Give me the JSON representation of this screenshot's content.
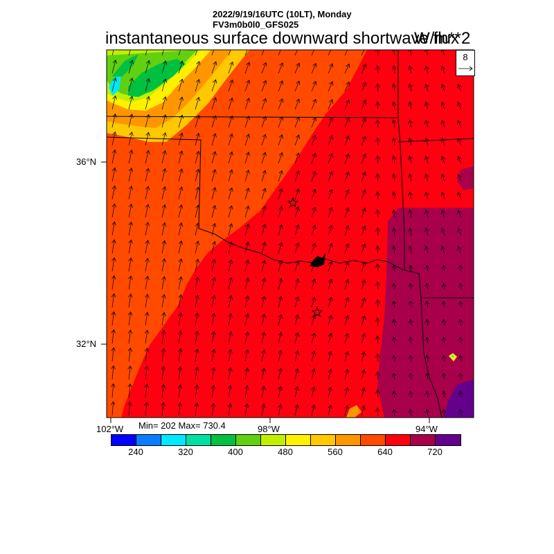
{
  "header": {
    "date_line": "2022/9/19/16UTC (10LT), Monday",
    "model_line": "FV3m0b0l0_GFS025",
    "title": "instantaneous surface downward shortwave flux",
    "units": "W/m**2"
  },
  "axes": {
    "lat_labels": [
      "36°N",
      "32°N"
    ],
    "lon_labels": [
      "102°W",
      "98°W",
      "94°W"
    ]
  },
  "stats": {
    "text": "Min= 202 Max= 730.4"
  },
  "vector_reference": {
    "value": "8"
  },
  "colorbar": {
    "labels": [
      "240",
      "320",
      "400",
      "480",
      "560",
      "640",
      "720"
    ],
    "colors": [
      "#0000ff",
      "#0a7cff",
      "#00e8ff",
      "#00e0a0",
      "#00c040",
      "#60d010",
      "#c0f000",
      "#fff000",
      "#ffc800",
      "#ff9600",
      "#ff4a00",
      "#ff0010",
      "#a8004a",
      "#64008c"
    ]
  },
  "field_colors": {
    "orange_red": "#ff4a00",
    "red": "#ff0010",
    "magenta": "#a8004a",
    "purple": "#64008c",
    "orange": "#ff9600",
    "amber": "#ffc800",
    "yellow": "#fff000",
    "lime": "#c0f000",
    "green": "#00c040",
    "light_green": "#60d010",
    "cyan": "#00e8ff"
  }
}
